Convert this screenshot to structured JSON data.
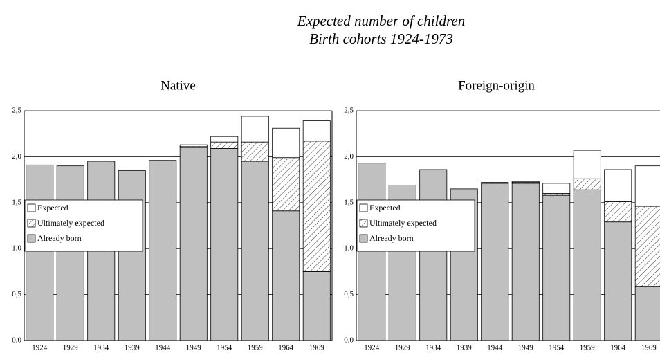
{
  "title": "Expected number of children",
  "subtitle": "Birth cohorts 1924-1973",
  "chart_data": [
    {
      "type": "bar",
      "stacked": true,
      "title": "Native",
      "categories": [
        "1924",
        "1929",
        "1934",
        "1939",
        "1944",
        "1949",
        "1954",
        "1959",
        "1964",
        "1969"
      ],
      "series": [
        {
          "name": "Already born",
          "color": "#c0c0c0",
          "values": [
            1.91,
            1.9,
            1.95,
            1.85,
            1.96,
            2.1,
            2.09,
            1.95,
            1.41,
            0.75
          ]
        },
        {
          "name": "Ultimately expected",
          "color": "#ffffff",
          "hatch": true,
          "values": [
            0,
            0,
            0,
            0,
            0,
            0.01,
            0.07,
            0.21,
            0.58,
            1.42
          ]
        },
        {
          "name": "Expected",
          "color": "#ffffff",
          "values": [
            0,
            0,
            0,
            0,
            0,
            0.02,
            0.06,
            0.28,
            0.32,
            0.22
          ]
        }
      ],
      "ylim": [
        0,
        2.5
      ],
      "yticks": [
        {
          "value": 0,
          "label": "0,0"
        },
        {
          "value": 0.5,
          "label": "0,5"
        },
        {
          "value": 1,
          "label": "1,0"
        },
        {
          "value": 1.5,
          "label": "1,5"
        },
        {
          "value": 2,
          "label": "2,0"
        },
        {
          "value": 2.5,
          "label": "2,5"
        }
      ],
      "grid": true,
      "legend": "left"
    },
    {
      "type": "bar",
      "stacked": true,
      "title": "Foreign-origin",
      "categories": [
        "1924",
        "1929",
        "1934",
        "1939",
        "1944",
        "1949",
        "1954",
        "1959",
        "1964",
        "1969"
      ],
      "series": [
        {
          "name": "Already born",
          "color": "#c0c0c0",
          "values": [
            1.93,
            1.69,
            1.86,
            1.65,
            1.71,
            1.71,
            1.58,
            1.64,
            1.29,
            0.59
          ]
        },
        {
          "name": "Ultimately expected",
          "color": "#ffffff",
          "hatch": true,
          "values": [
            0,
            0,
            0,
            0,
            0.01,
            0.01,
            0.02,
            0.12,
            0.22,
            0.87
          ]
        },
        {
          "name": "Expected",
          "color": "#ffffff",
          "values": [
            0,
            0,
            0,
            0,
            0,
            0.01,
            0.11,
            0.31,
            0.35,
            0.44
          ]
        }
      ],
      "ylim": [
        0,
        2.5
      ],
      "yticks": [
        {
          "value": 0,
          "label": "0,0"
        },
        {
          "value": 0.5,
          "label": "0,5"
        },
        {
          "value": 1,
          "label": "1,0"
        },
        {
          "value": 1.5,
          "label": "1,5"
        },
        {
          "value": 2,
          "label": "2,0"
        },
        {
          "value": 2.5,
          "label": "2,5"
        }
      ],
      "grid": true,
      "legend": "left"
    }
  ]
}
